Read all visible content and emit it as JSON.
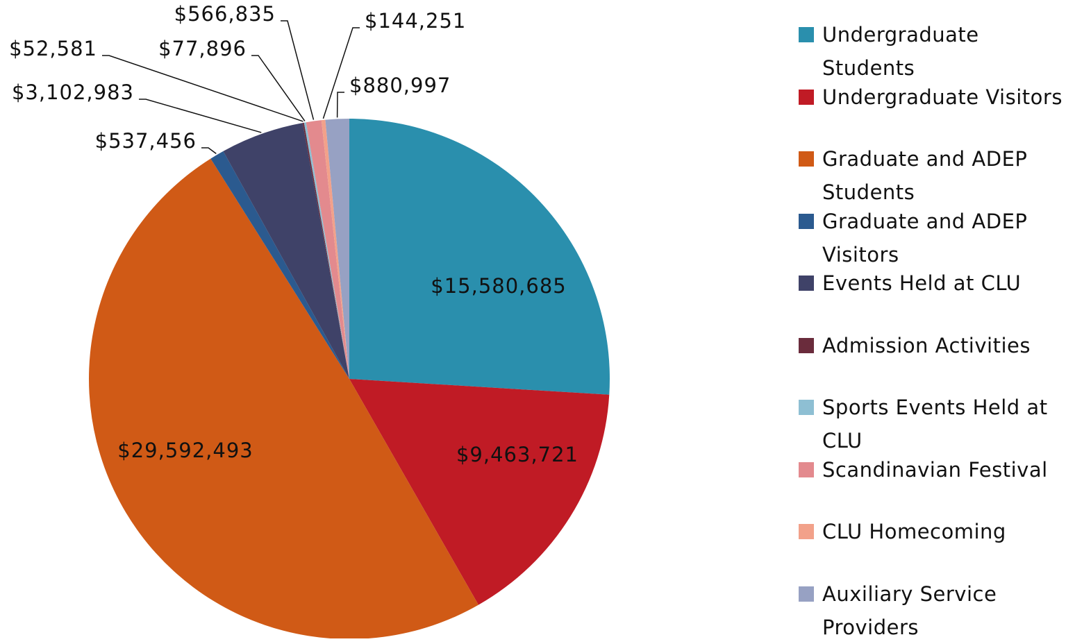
{
  "chart_data": {
    "type": "pie",
    "labels": [
      "Undergraduate Students",
      "Undergraduate Visitors",
      "Graduate and ADEP Students",
      "Graduate and ADEP Visitors",
      "Events Held at CLU",
      "Admission Activities",
      "Sports Events Held at CLU",
      "Scandinavian Festival",
      "CLU Homecoming",
      "Auxiliary Service Providers"
    ],
    "values": [
      15580685,
      9463721,
      29592493,
      537456,
      3102983,
      52581,
      77896,
      566835,
      144251,
      880997
    ],
    "value_labels": [
      "$15,580,685",
      "$9,463,721",
      "$29,592,493",
      "$537,456",
      "$3,102,983",
      "$52,581",
      "$77,896",
      "$566,835",
      "$144,251",
      "$880,997"
    ],
    "colors": [
      "#2a8fad",
      "#c01b25",
      "#d05a16",
      "#2b5a8f",
      "#3f4268",
      "#6a2c3c",
      "#8ebfd3",
      "#e38a8e",
      "#f2a18a",
      "#97a1c3"
    ],
    "legend": "right"
  }
}
